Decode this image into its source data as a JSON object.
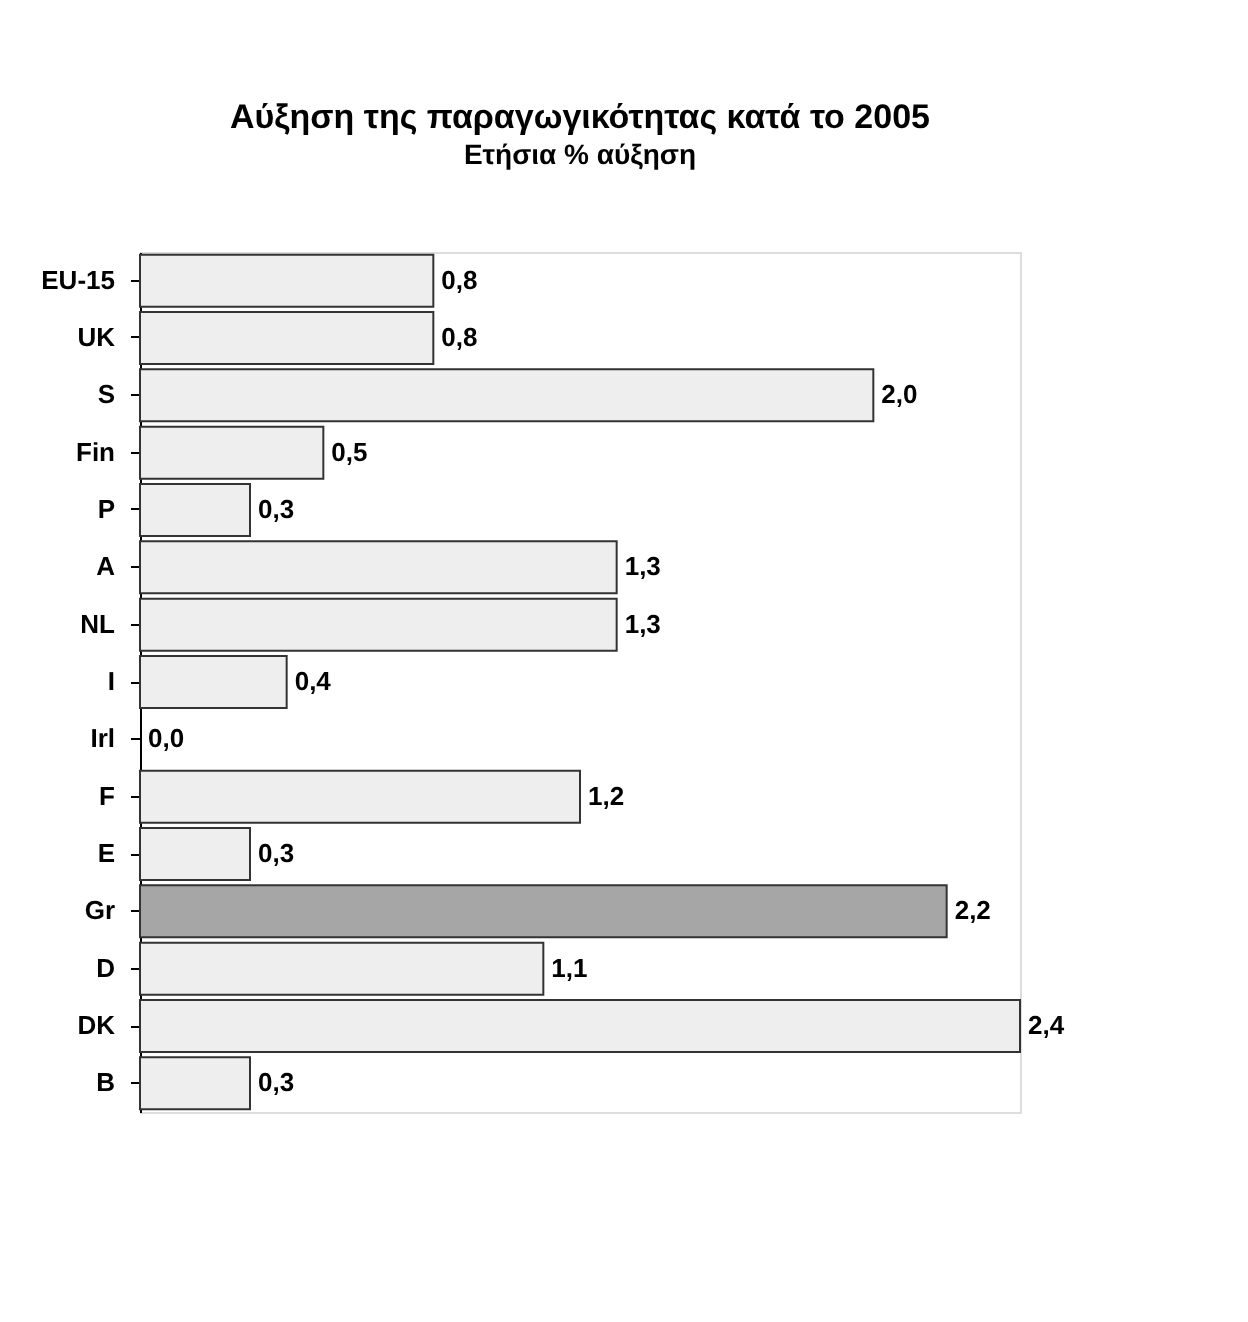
{
  "chart_data": {
    "type": "bar",
    "orientation": "horizontal",
    "title": "Αύξηση της παραγωγικότητας κατά το 2005",
    "subtitle": "Ετήσια % αύξηση",
    "categories": [
      "EU-15",
      "UK",
      "S",
      "Fin",
      "P",
      "A",
      "NL",
      "I",
      "Irl",
      "F",
      "E",
      "Gr",
      "D",
      "DK",
      "B"
    ],
    "values": [
      0.8,
      0.8,
      2.0,
      0.5,
      0.3,
      1.3,
      1.3,
      0.4,
      0.0,
      1.2,
      0.3,
      2.2,
      1.1,
      2.4,
      0.3
    ],
    "value_labels": [
      "0,8",
      "0,8",
      "2,0",
      "0,5",
      "0,3",
      "1,3",
      "1,3",
      "0,4",
      "0,0",
      "1,2",
      "0,3",
      "2,2",
      "1,1",
      "2,4",
      "0,3"
    ],
    "colors": [
      "#eeeeee",
      "#eeeeee",
      "#eeeeee",
      "#eeeeee",
      "#eeeeee",
      "#eeeeee",
      "#eeeeee",
      "#eeeeee",
      "#eeeeee",
      "#eeeeee",
      "#eeeeee",
      "#a6a6a6",
      "#eeeeee",
      "#eeeeee",
      "#eeeeee"
    ],
    "grid": false
  }
}
